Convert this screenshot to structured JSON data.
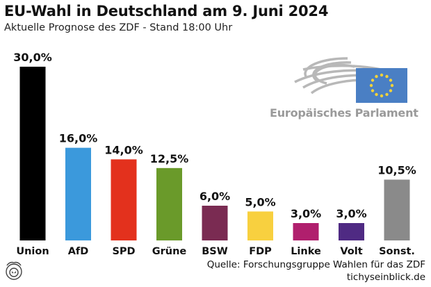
{
  "header": {
    "title": "EU-Wahl in Deutschland am 9. Juni 2024",
    "subtitle": "Aktuelle Prognose des ZDF - Stand 18:00 Uhr"
  },
  "logo": {
    "label": "Europäisches Parlament",
    "icon": "european-parliament-hemicycle-icon",
    "flag_color": "#4a7fc4",
    "star_color": "#f2d23a"
  },
  "footer": {
    "source": "Quelle: Forschungsgruppe Wahlen für das ZDF",
    "site": "tichyseinblick.de",
    "mascot_icon": "lion-head-icon"
  },
  "chart_data": {
    "type": "bar",
    "title": "EU-Wahl in Deutschland am 9. Juni 2024",
    "subtitle": "Aktuelle Prognose des ZDF - Stand 18:00 Uhr",
    "categories": [
      "Union",
      "AfD",
      "SPD",
      "Grüne",
      "BSW",
      "FDP",
      "Linke",
      "Volt",
      "Sonst."
    ],
    "values": [
      30.0,
      16.0,
      14.0,
      12.5,
      6.0,
      5.0,
      3.0,
      3.0,
      10.5
    ],
    "value_labels": [
      "30,0%",
      "16,0%",
      "14,0%",
      "12,5%",
      "6,0%",
      "5,0%",
      "3,0%",
      "3,0%",
      "10,5%"
    ],
    "colors": [
      "#000000",
      "#3b99dc",
      "#e3311d",
      "#6a9a2a",
      "#7a2b52",
      "#f8d03f",
      "#b01f6d",
      "#4f2a83",
      "#8a8a8a"
    ],
    "ylim": [
      0,
      30
    ],
    "grid": false,
    "legend": "none"
  }
}
